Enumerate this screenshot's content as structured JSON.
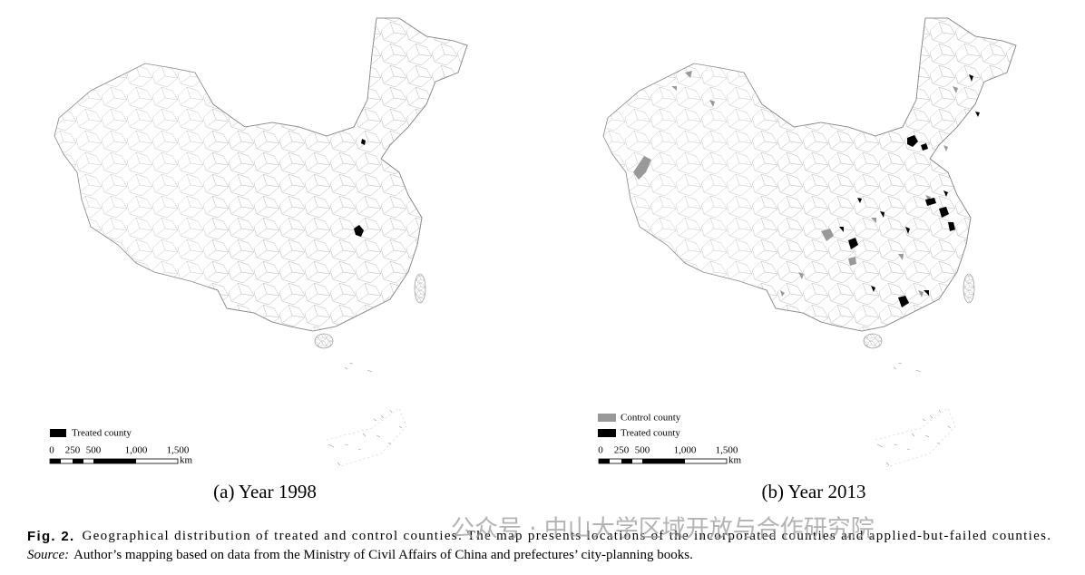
{
  "panels": [
    {
      "caption": "(a) Year 1998",
      "legend": [
        "Treated county"
      ],
      "scale": {
        "ticks": [
          "0",
          "250",
          "500",
          "1,000",
          "1,500"
        ],
        "unit": "km"
      }
    },
    {
      "caption": "(b) Year 2013",
      "legend": [
        "Control county",
        "Treated county"
      ],
      "scale": {
        "ticks": [
          "0",
          "250",
          "500",
          "1,000",
          "1,500"
        ],
        "unit": "km"
      }
    }
  ],
  "figure": {
    "label": "Fig. 2.",
    "caption": "Geographical distribution of treated and control counties. The map presents locations of the incorporated counties and applied-but-failed counties.",
    "source_label": "Source:",
    "source": "Author’s mapping based on data from the Ministry of Civil Affairs of China and prefectures’ city-planning books."
  },
  "watermark": "公众号 · 中山大学区域开放与合作研究院"
}
